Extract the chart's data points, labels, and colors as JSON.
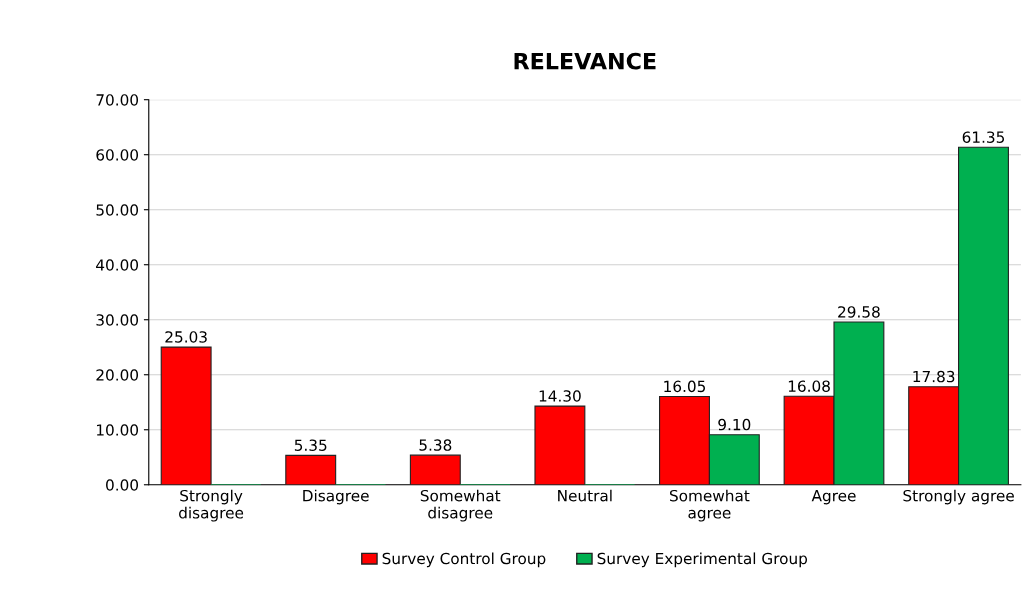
{
  "chart_data": {
    "type": "bar",
    "title": "RELEVANCE",
    "categories": [
      "Strongly\ndisagree",
      "Disagree",
      "Somewhat\ndisagree",
      "Neutral",
      "Somewhat\nagree",
      "Agree",
      "Strongly agree"
    ],
    "series": [
      {
        "name": "Survey Control Group",
        "color": "#ff0000",
        "values": [
          25.03,
          5.35,
          5.38,
          14.3,
          16.05,
          16.08,
          17.83
        ],
        "value_labels": [
          "25.03",
          "5.35",
          "5.38",
          "14.30",
          "16.05",
          "16.08",
          "17.83"
        ]
      },
      {
        "name": "Survey Experimental Group",
        "color": "#00b050",
        "values": [
          0,
          0,
          0,
          0,
          9.1,
          29.58,
          61.35
        ],
        "value_labels": [
          null,
          null,
          null,
          null,
          "9.10",
          "29.58",
          "61.35"
        ]
      }
    ],
    "ylim": [
      0,
      70
    ],
    "yticks": [
      {
        "value": 0,
        "label": "0.00"
      },
      {
        "value": 10,
        "label": "10.00"
      },
      {
        "value": 20,
        "label": "20.00"
      },
      {
        "value": 30,
        "label": "30.00"
      },
      {
        "value": 40,
        "label": "40.00"
      },
      {
        "value": 50,
        "label": "50.00"
      },
      {
        "value": 60,
        "label": "60.00"
      },
      {
        "value": 70,
        "label": "70.00"
      }
    ],
    "grid": "y",
    "legend": "bottom"
  }
}
